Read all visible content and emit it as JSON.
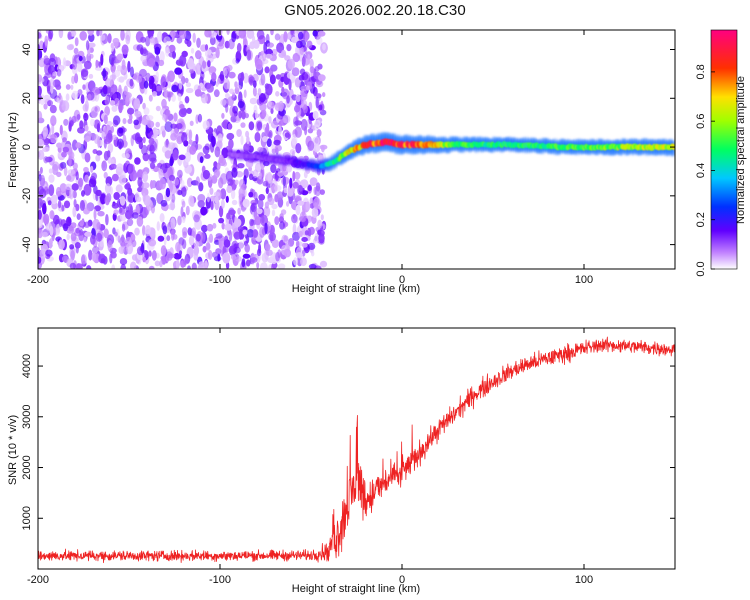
{
  "page": {
    "title": "GN05.2026.002.20.18.C30"
  },
  "chart_data": [
    {
      "type": "heatmap",
      "title": "",
      "xlabel": "Height of straight line (km)",
      "ylabel": "Frequency (Hz)",
      "xlim": [
        -200,
        150
      ],
      "ylim": [
        -50,
        48
      ],
      "x_ticks": [
        -200,
        -100,
        0,
        100
      ],
      "y_ticks": [
        -40,
        -20,
        0,
        20,
        40
      ],
      "grid": false,
      "colorbar": {
        "label": "Normalized spectral amplitude",
        "range": [
          0.0,
          0.97
        ],
        "ticks": [
          "0.0",
          "0.2",
          "0.4",
          "0.6",
          "0.8"
        ],
        "colormap": "hsv-rainbow (white, violet, blue, cyan, green, yellow, red, magenta)"
      },
      "description_values": {
        "noise_region_x": [
          -200,
          -45
        ],
        "signal_trace": {
          "x": [
            -95,
            -80,
            -60,
            -45,
            -40,
            -35,
            -30,
            -20,
            -10,
            0,
            10,
            30,
            60,
            90,
            150
          ],
          "frequency": [
            -3,
            -4,
            -6,
            -8,
            -7,
            -5,
            -2,
            1,
            2,
            1,
            1,
            1,
            1,
            0,
            0
          ],
          "amplitude": [
            0.1,
            0.12,
            0.15,
            0.3,
            0.45,
            0.55,
            0.7,
            0.85,
            0.95,
            0.9,
            0.85,
            0.55,
            0.5,
            0.55,
            0.7
          ]
        }
      }
    },
    {
      "type": "line",
      "title": "",
      "xlabel": "Height of straight line (km)",
      "ylabel": "SNR (10 * v/v)",
      "xlim": [
        -200,
        150
      ],
      "ylim": [
        0,
        4750
      ],
      "x_ticks": [
        -200,
        -100,
        0,
        100
      ],
      "y_ticks": [
        1000,
        2000,
        3000,
        4000
      ],
      "grid": false,
      "series": [
        {
          "name": "SNR",
          "color": "#ee2222",
          "x": [
            -200,
            -150,
            -100,
            -50,
            -40,
            -35,
            -30,
            -25,
            -22,
            -20,
            -15,
            -10,
            -5,
            0,
            10,
            20,
            30,
            40,
            50,
            60,
            70,
            80,
            90,
            100,
            110,
            120,
            130,
            140,
            150
          ],
          "y": [
            260,
            260,
            260,
            270,
            350,
            700,
            1200,
            1800,
            1600,
            1350,
            1500,
            1700,
            1800,
            1900,
            2300,
            2750,
            3100,
            3450,
            3700,
            3900,
            4050,
            4150,
            4250,
            4350,
            4420,
            4400,
            4380,
            4350,
            4320
          ],
          "noise_amplitude": [
            150,
            150,
            150,
            150,
            300,
            700,
            900,
            900,
            800,
            600,
            500,
            450,
            400,
            400,
            350,
            300,
            300,
            300,
            280,
            250,
            250,
            250,
            250,
            220,
            200,
            200,
            200,
            200,
            200
          ]
        }
      ]
    }
  ]
}
